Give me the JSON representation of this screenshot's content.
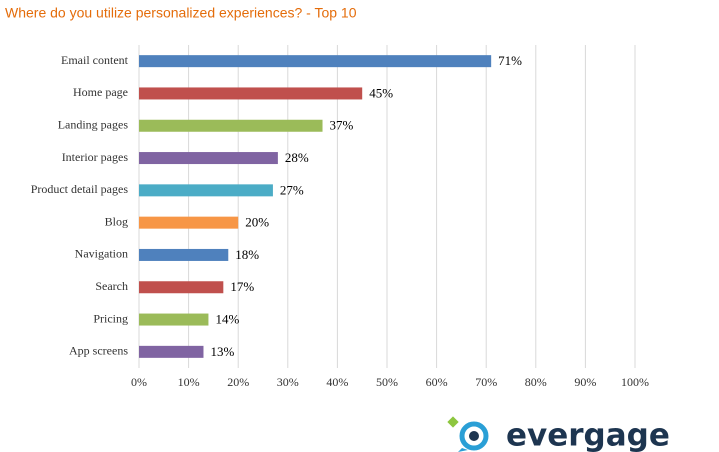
{
  "chart_data": {
    "type": "barh",
    "title": "Where do you utilize personalized experiences? - Top 10",
    "categories": [
      "Email content",
      "Home page",
      "Landing pages",
      "Interior pages",
      "Product detail pages",
      "Blog",
      "Navigation",
      "Search",
      "Pricing",
      "App screens"
    ],
    "values": [
      71,
      45,
      37,
      28,
      27,
      20,
      18,
      17,
      14,
      13
    ],
    "value_labels": [
      "71%",
      "45%",
      "37%",
      "28%",
      "27%",
      "20%",
      "18%",
      "17%",
      "14%",
      "13%"
    ],
    "colors": [
      "#4f81bd",
      "#c0504d",
      "#9bbb59",
      "#8064a2",
      "#4bacc6",
      "#f79646",
      "#4f81bd",
      "#c0504d",
      "#9bbb59",
      "#8064a2"
    ],
    "xlim": [
      0,
      100
    ],
    "xticks": [
      {
        "value": 0,
        "label": "0%"
      },
      {
        "value": 10,
        "label": "10%"
      },
      {
        "value": 20,
        "label": "20%"
      },
      {
        "value": 30,
        "label": "30%"
      },
      {
        "value": 40,
        "label": "40%"
      },
      {
        "value": 50,
        "label": "50%"
      },
      {
        "value": 60,
        "label": "60%"
      },
      {
        "value": 70,
        "label": "70%"
      },
      {
        "value": 80,
        "label": "80%"
      },
      {
        "value": 90,
        "label": "90%"
      },
      {
        "value": 100,
        "label": "100%"
      }
    ],
    "grid": true
  },
  "brand": "evergage"
}
